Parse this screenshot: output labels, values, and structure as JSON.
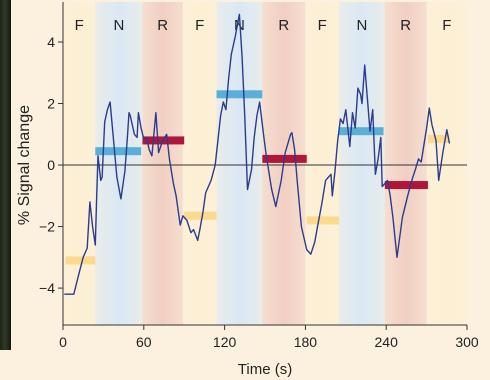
{
  "chart_data": {
    "type": "line",
    "title": "",
    "xlabel": "Time (s)",
    "ylabel": "% Signal change",
    "xlim": [
      0,
      300
    ],
    "ylim": [
      -5.2,
      5.3
    ],
    "xticks": [
      0,
      60,
      120,
      180,
      240,
      300
    ],
    "xtick_labels": [
      "0",
      "60",
      "120",
      "180",
      "240",
      "300"
    ],
    "yticks": [
      -4,
      -2,
      0,
      2,
      4
    ],
    "ytick_labels": [
      "−4",
      "−2",
      "0",
      "2",
      "4"
    ],
    "grid": false,
    "legend": "none",
    "blocks": [
      {
        "label": "F",
        "start": 0,
        "end": 24,
        "kind": "F"
      },
      {
        "label": "N",
        "start": 24,
        "end": 59,
        "kind": "N"
      },
      {
        "label": "R",
        "start": 59,
        "end": 89,
        "kind": "R"
      },
      {
        "label": "F",
        "start": 89,
        "end": 114,
        "kind": "F"
      },
      {
        "label": "N",
        "start": 114,
        "end": 148,
        "kind": "N"
      },
      {
        "label": "R",
        "start": 148,
        "end": 180,
        "kind": "R"
      },
      {
        "label": "F",
        "start": 180,
        "end": 205,
        "kind": "F"
      },
      {
        "label": "N",
        "start": 205,
        "end": 239,
        "kind": "N"
      },
      {
        "label": "R",
        "start": 239,
        "end": 270,
        "kind": "R"
      },
      {
        "label": "F",
        "start": 270,
        "end": 300,
        "kind": "F"
      }
    ],
    "means": [
      {
        "kind": "F",
        "start": 2,
        "end": 24,
        "value": -3.1
      },
      {
        "kind": "N",
        "start": 24,
        "end": 58,
        "value": 0.45
      },
      {
        "kind": "R",
        "start": 59,
        "end": 90,
        "value": 0.8
      },
      {
        "kind": "F",
        "start": 90,
        "end": 114,
        "value": -1.65
      },
      {
        "kind": "N",
        "start": 114,
        "end": 148,
        "value": 2.3
      },
      {
        "kind": "R",
        "start": 148,
        "end": 181,
        "value": 0.2
      },
      {
        "kind": "F",
        "start": 181,
        "end": 205,
        "value": -1.8
      },
      {
        "kind": "N",
        "start": 205,
        "end": 238,
        "value": 1.1
      },
      {
        "kind": "R",
        "start": 239,
        "end": 271,
        "value": -0.65
      },
      {
        "kind": "F",
        "start": 271,
        "end": 287,
        "value": 0.85
      }
    ],
    "series": [
      {
        "x": [
          1,
          8,
          12,
          15,
          18,
          20,
          22,
          24,
          25,
          26,
          28,
          29,
          31,
          33,
          35,
          40,
          43,
          46,
          48,
          49,
          50,
          53,
          55,
          56,
          58,
          60,
          62,
          64,
          66,
          69,
          71,
          74,
          77,
          79,
          82,
          84,
          87,
          89,
          92,
          95,
          97,
          100,
          102,
          104,
          106,
          110,
          113,
          117,
          119,
          121,
          123,
          125,
          126,
          128,
          131,
          133,
          134,
          135,
          137,
          140,
          142,
          144,
          146,
          149,
          151,
          155,
          158,
          162,
          165,
          169,
          170,
          172,
          174,
          177,
          181,
          184,
          187,
          189,
          192,
          195,
          197,
          199,
          200,
          202,
          204,
          206,
          208,
          210,
          213,
          215,
          217,
          219,
          221,
          222,
          224,
          226,
          228,
          230,
          232,
          234,
          236,
          237,
          239,
          241,
          243,
          245,
          248,
          252,
          256,
          259,
          262,
          264,
          266,
          270,
          272,
          274,
          277,
          279,
          282,
          285,
          287
        ],
        "y": [
          -4.2,
          -4.2,
          -3.5,
          -3.0,
          -2.7,
          -1.2,
          -2.0,
          -2.6,
          -1.0,
          0.3,
          -0.5,
          -0.4,
          1.4,
          1.8,
          2.05,
          -0.4,
          -1.1,
          -0.2,
          1.0,
          1.7,
          1.6,
          1.0,
          0.9,
          1.7,
          1.2,
          0.85,
          0.9,
          0.5,
          0.3,
          1.7,
          0.4,
          0.8,
          1.0,
          0.2,
          -0.6,
          -1.0,
          -1.95,
          -1.65,
          -1.8,
          -2.2,
          -2.1,
          -2.45,
          -2.0,
          -1.5,
          -0.9,
          -0.5,
          0.0,
          1.6,
          2.05,
          1.8,
          2.8,
          3.6,
          3.8,
          4.2,
          4.9,
          3.5,
          2.5,
          1.55,
          -0.8,
          -0.15,
          0.9,
          1.6,
          2.05,
          0.95,
          0.3,
          -0.8,
          -1.35,
          -0.5,
          0.4,
          1.0,
          1.05,
          0.5,
          -0.55,
          -2.0,
          -2.75,
          -2.9,
          -2.5,
          -2.0,
          -1.3,
          -0.5,
          -0.4,
          -0.3,
          -1.0,
          -0.2,
          0.8,
          1.5,
          1.35,
          1.8,
          0.6,
          1.7,
          1.2,
          2.5,
          2.3,
          2.0,
          3.25,
          2.2,
          1.1,
          1.8,
          -0.3,
          0.2,
          0.9,
          -0.7,
          -0.6,
          -0.5,
          -1.0,
          -1.7,
          -3.0,
          -1.7,
          -1.0,
          -0.5,
          -0.1,
          0.2,
          0.1,
          1.2,
          1.85,
          1.3,
          0.8,
          -0.5,
          0.4,
          1.15,
          0.7
        ]
      }
    ]
  },
  "colors": {
    "F_band": "#fdefd3",
    "N_band": "#dae8f4",
    "R_band": "#f1cfc3",
    "F_bar": "#fbd98e",
    "N_bar": "#5aaed8",
    "R_bar": "#b0163b",
    "line": "#2a3c8e",
    "axis": "#333333"
  }
}
